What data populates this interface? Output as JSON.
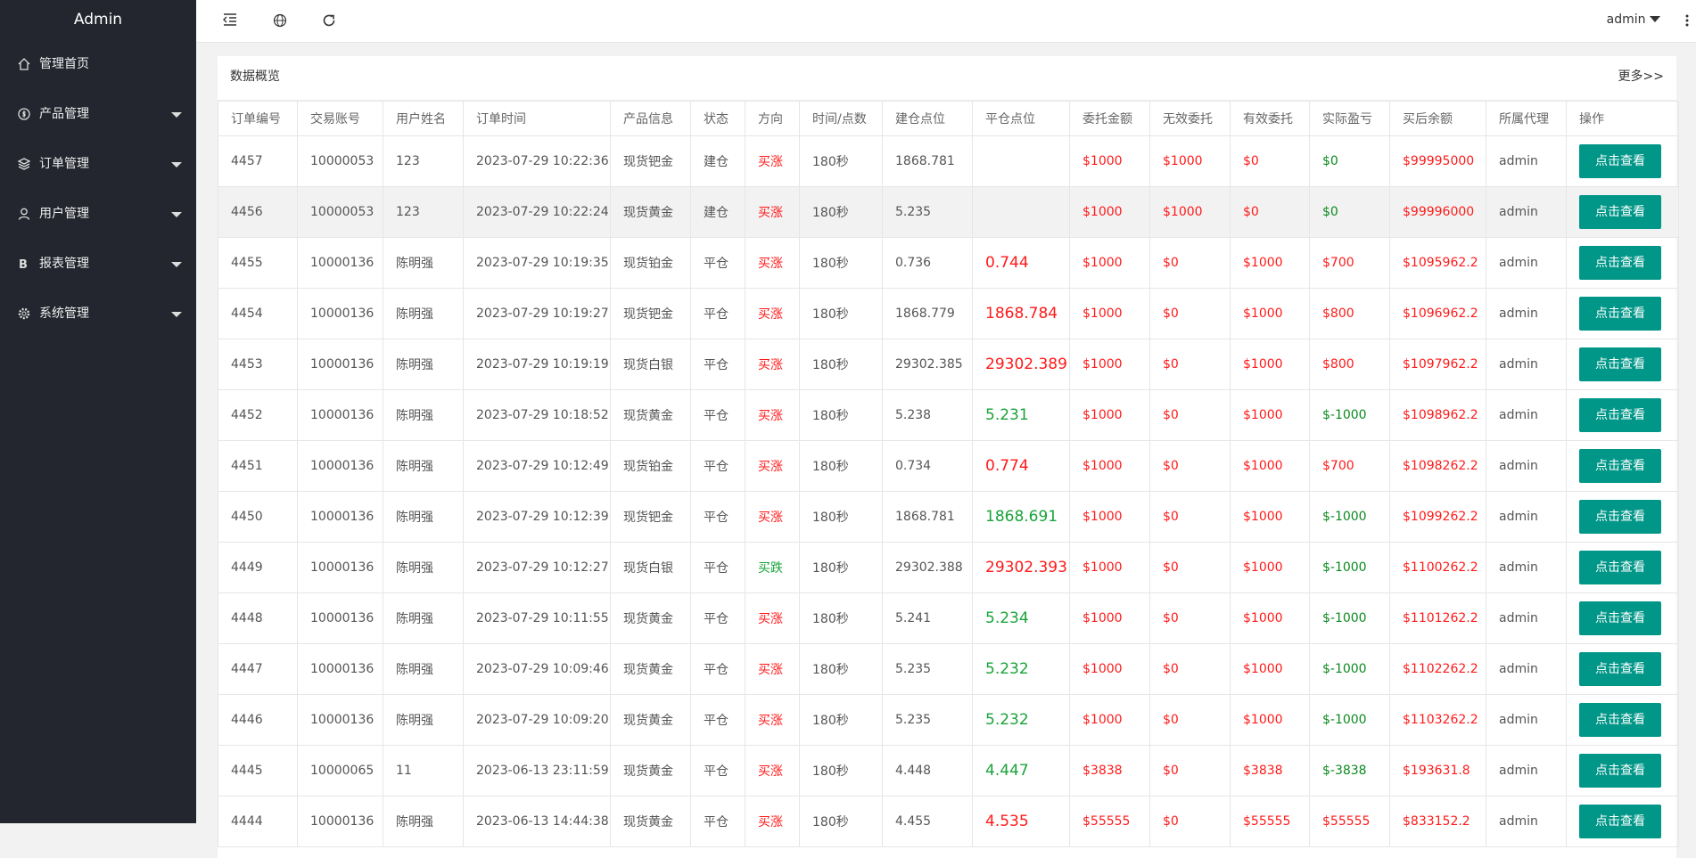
{
  "sidebar": {
    "title": "Admin",
    "menu": [
      "管理首页",
      "产品管理",
      "订单管理",
      "用户管理",
      "报表管理",
      "系统管理"
    ]
  },
  "header": {
    "user": "admin"
  },
  "card": {
    "title": "数据概览",
    "more": "更多>>"
  },
  "table": {
    "columns": [
      "订单编号",
      "交易账号",
      "用户姓名",
      "订单时间",
      "产品信息",
      "状态",
      "方向",
      "时间/点数",
      "建仓点位",
      "平仓点位",
      "委托金额",
      "无效委托",
      "有效委托",
      "实际盈亏",
      "买后余额",
      "所属代理",
      "操作"
    ],
    "rows": [
      {
        "cells": [
          "4457",
          "10000053",
          "123",
          "2023-07-29 10:22:36",
          "现货钯金",
          "建仓",
          "买涨",
          "180秒",
          "1868.781",
          "",
          "$1000",
          "$1000",
          "$0",
          "$0",
          "$99995000",
          "admin"
        ],
        "action": "点击查看",
        "direction_color": "#ff1a1a",
        "pnl_color": "#0b8a1f"
      },
      {
        "cells": [
          "4456",
          "10000053",
          "123",
          "2023-07-29 10:22:24",
          "现货黄金",
          "建仓",
          "买涨",
          "180秒",
          "5.235",
          "",
          "$1000",
          "$1000",
          "$0",
          "$0",
          "$99996000",
          "admin"
        ],
        "action": "点击查看",
        "direction_color": "#ff1a1a",
        "pnl_color": "#0b8a1f"
      },
      {
        "cells": [
          "4455",
          "10000136",
          "陈明强",
          "2023-07-29 10:19:35",
          "现货铂金",
          "平仓",
          "买涨",
          "180秒",
          "0.736",
          "0.744",
          "$1000",
          "$0",
          "$1000",
          "$700",
          "$1095962.2",
          "admin"
        ],
        "action": "点击查看",
        "direction_color": "#ff1a1a",
        "close_color": "#ff1a1a",
        "pnl_color": "#ff1a1a"
      },
      {
        "cells": [
          "4454",
          "10000136",
          "陈明强",
          "2023-07-29 10:19:27",
          "现货钯金",
          "平仓",
          "买涨",
          "180秒",
          "1868.779",
          "1868.784",
          "$1000",
          "$0",
          "$1000",
          "$800",
          "$1096962.2",
          "admin"
        ],
        "action": "点击查看",
        "direction_color": "#ff1a1a",
        "close_color": "#ff1a1a",
        "pnl_color": "#ff1a1a"
      },
      {
        "cells": [
          "4453",
          "10000136",
          "陈明强",
          "2023-07-29 10:19:19",
          "现货白银",
          "平仓",
          "买涨",
          "180秒",
          "29302.385",
          "29302.389",
          "$1000",
          "$0",
          "$1000",
          "$800",
          "$1097962.2",
          "admin"
        ],
        "action": "点击查看",
        "direction_color": "#ff1a1a",
        "close_color": "#ff1a1a",
        "pnl_color": "#ff1a1a"
      },
      {
        "cells": [
          "4452",
          "10000136",
          "陈明强",
          "2023-07-29 10:18:52",
          "现货黄金",
          "平仓",
          "买涨",
          "180秒",
          "5.238",
          "5.231",
          "$1000",
          "$0",
          "$1000",
          "$-1000",
          "$1098962.2",
          "admin"
        ],
        "action": "点击查看",
        "direction_color": "#ff1a1a",
        "close_color": "#1aa33a",
        "pnl_color": "#0b8a1f"
      },
      {
        "cells": [
          "4451",
          "10000136",
          "陈明强",
          "2023-07-29 10:12:49",
          "现货铂金",
          "平仓",
          "买涨",
          "180秒",
          "0.734",
          "0.774",
          "$1000",
          "$0",
          "$1000",
          "$700",
          "$1098262.2",
          "admin"
        ],
        "action": "点击查看",
        "direction_color": "#ff1a1a",
        "close_color": "#ff1a1a",
        "pnl_color": "#ff1a1a"
      },
      {
        "cells": [
          "4450",
          "10000136",
          "陈明强",
          "2023-07-29 10:12:39",
          "现货钯金",
          "平仓",
          "买涨",
          "180秒",
          "1868.781",
          "1868.691",
          "$1000",
          "$0",
          "$1000",
          "$-1000",
          "$1099262.2",
          "admin"
        ],
        "action": "点击查看",
        "direction_color": "#ff1a1a",
        "close_color": "#1aa33a",
        "pnl_color": "#0b8a1f"
      },
      {
        "cells": [
          "4449",
          "10000136",
          "陈明强",
          "2023-07-29 10:12:27",
          "现货白银",
          "平仓",
          "买跌",
          "180秒",
          "29302.388",
          "29302.393",
          "$1000",
          "$0",
          "$1000",
          "$-1000",
          "$1100262.2",
          "admin"
        ],
        "action": "点击查看",
        "direction_color": "#1aa33a",
        "close_color": "#ff1a1a",
        "pnl_color": "#0b8a1f"
      },
      {
        "cells": [
          "4448",
          "10000136",
          "陈明强",
          "2023-07-29 10:11:55",
          "现货黄金",
          "平仓",
          "买涨",
          "180秒",
          "5.241",
          "5.234",
          "$1000",
          "$0",
          "$1000",
          "$-1000",
          "$1101262.2",
          "admin"
        ],
        "action": "点击查看",
        "direction_color": "#ff1a1a",
        "close_color": "#1aa33a",
        "pnl_color": "#0b8a1f"
      },
      {
        "cells": [
          "4447",
          "10000136",
          "陈明强",
          "2023-07-29 10:09:46",
          "现货黄金",
          "平仓",
          "买涨",
          "180秒",
          "5.235",
          "5.232",
          "$1000",
          "$0",
          "$1000",
          "$-1000",
          "$1102262.2",
          "admin"
        ],
        "action": "点击查看",
        "direction_color": "#ff1a1a",
        "close_color": "#1aa33a",
        "pnl_color": "#0b8a1f"
      },
      {
        "cells": [
          "4446",
          "10000136",
          "陈明强",
          "2023-07-29 10:09:20",
          "现货黄金",
          "平仓",
          "买涨",
          "180秒",
          "5.235",
          "5.232",
          "$1000",
          "$0",
          "$1000",
          "$-1000",
          "$1103262.2",
          "admin"
        ],
        "action": "点击查看",
        "direction_color": "#ff1a1a",
        "close_color": "#1aa33a",
        "pnl_color": "#0b8a1f"
      },
      {
        "cells": [
          "4445",
          "10000065",
          "11",
          "2023-06-13 23:11:59",
          "现货黄金",
          "平仓",
          "买涨",
          "180秒",
          "4.448",
          "4.447",
          "$3838",
          "$0",
          "$3838",
          "$-3838",
          "$193631.8",
          "admin"
        ],
        "action": "点击查看",
        "direction_color": "#ff1a1a",
        "close_color": "#1aa33a",
        "pnl_color": "#0b8a1f"
      },
      {
        "cells": [
          "4444",
          "10000136",
          "陈明强",
          "2023-06-13 14:44:38",
          "现货黄金",
          "平仓",
          "买涨",
          "180秒",
          "4.455",
          "4.535",
          "$55555",
          "$0",
          "$55555",
          "$55555",
          "$833152.2",
          "admin"
        ],
        "action": "点击查看",
        "direction_color": "#ff1a1a",
        "close_color": "#ff1a1a",
        "pnl_color": "#ff1a1a"
      }
    ]
  }
}
